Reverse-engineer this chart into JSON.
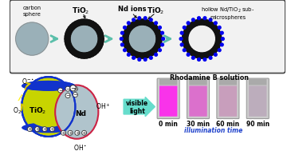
{
  "bg_color": "#ffffff",
  "arrow_color": "#5bbfaa",
  "top_labels_tio2": "TiO$_2$",
  "top_labels_nd": "Nd ions",
  "top_labels_hollow": "hollow Nd/TiO$_2$ sub-\nmicrospheres",
  "top_labels_carbon": "carbon\nsphere",
  "rhodamine_label": "Rhodamine B solution",
  "time_labels": [
    "0 min",
    "30 min",
    "60 min",
    "90 min"
  ],
  "illumination_label": "illumination time",
  "visible_light_label": "visible\nlight",
  "vial_colors": [
    "#ff22ee",
    "#dd66cc",
    "#c899bb",
    "#bbaabb"
  ],
  "sphere_gray": "#9ab0b8",
  "tio2_black": "#111111",
  "nd_blue": "#0000ee",
  "tio2_yellow": "#c8d400",
  "tio2_blue_band": "#1133cc",
  "nd_gray": "#b0c4cc",
  "nd_border": "#cc2244"
}
